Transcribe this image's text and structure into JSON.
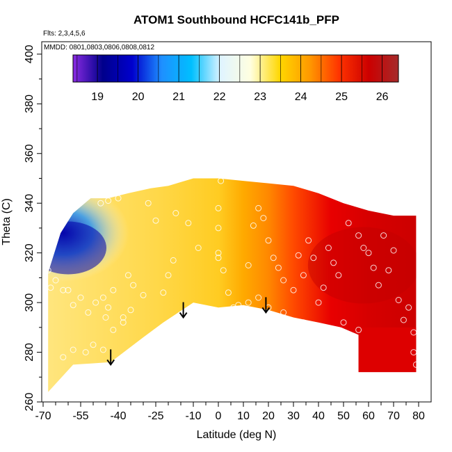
{
  "chart_data": {
    "type": "heatmap",
    "title": "ATOM1 Southbound HCFC141b_PFP",
    "flights_note": "Flts: 2,3,4,5,6",
    "dates_note": "MMDD: 0801,0803,0806,0808,0812",
    "xlabel": "Latitude (deg N)",
    "ylabel": "Theta (C)",
    "xlim": [
      -70,
      82
    ],
    "ylim": [
      260,
      405
    ],
    "x_ticks": [
      -70,
      -55,
      -40,
      -25,
      -10,
      0,
      10,
      20,
      30,
      40,
      50,
      60,
      70,
      80
    ],
    "y_ticks": [
      260,
      280,
      300,
      320,
      340,
      360,
      380,
      400
    ],
    "colorbar": {
      "min": 18.4,
      "max": 26.4,
      "ticks": [
        19,
        20,
        21,
        22,
        23,
        24,
        25,
        26
      ],
      "colors": [
        "#8a2be2",
        "#00008b",
        "#0000cd",
        "#1e90ff",
        "#00bfff",
        "#e0f4ff",
        "#ffffe0",
        "#ffd700",
        "#ff9900",
        "#ff3300",
        "#cc0000",
        "#a52a2a"
      ]
    },
    "tropopause_arrows": [
      {
        "lat": -43,
        "theta": 275
      },
      {
        "lat": -14,
        "theta": 294
      },
      {
        "lat": 19,
        "theta": 296
      }
    ],
    "domain_top": [
      [
        -68,
        312
      ],
      [
        -63,
        328
      ],
      [
        -58,
        336
      ],
      [
        -51,
        342
      ],
      [
        -44,
        342
      ],
      [
        -36,
        344
      ],
      [
        -27,
        346
      ],
      [
        -20,
        347
      ],
      [
        -10,
        350
      ],
      [
        0,
        350
      ],
      [
        10,
        349
      ],
      [
        20,
        348
      ],
      [
        30,
        347
      ],
      [
        40,
        344
      ],
      [
        50,
        340
      ],
      [
        60,
        337
      ],
      [
        70,
        335
      ],
      [
        79,
        335
      ],
      [
        79,
        272
      ]
    ],
    "domain_bottom": [
      [
        -68,
        264
      ],
      [
        -58,
        275
      ],
      [
        -43,
        276
      ],
      [
        -30,
        286
      ],
      [
        -22,
        292
      ],
      [
        -10,
        300
      ],
      [
        0,
        298
      ],
      [
        10,
        299
      ],
      [
        20,
        297
      ],
      [
        30,
        294
      ],
      [
        40,
        292
      ],
      [
        49,
        290
      ],
      [
        56,
        287
      ],
      [
        56,
        272
      ]
    ],
    "sample_points": [
      [
        -68,
        313
      ],
      [
        -67,
        306
      ],
      [
        -65,
        309
      ],
      [
        -62,
        305
      ],
      [
        -60,
        305
      ],
      [
        -58,
        299
      ],
      [
        -55,
        302
      ],
      [
        -52,
        296
      ],
      [
        -49,
        300
      ],
      [
        -46,
        302
      ],
      [
        -45,
        294
      ],
      [
        -44,
        298
      ],
      [
        -42,
        305
      ],
      [
        -38,
        292
      ],
      [
        -36,
        311
      ],
      [
        -34,
        307
      ],
      [
        -30,
        303
      ],
      [
        -22,
        304
      ],
      [
        -20,
        311
      ],
      [
        -18,
        317
      ],
      [
        -47,
        340
      ],
      [
        -44,
        341
      ],
      [
        -40,
        342
      ],
      [
        -28,
        340
      ],
      [
        -25,
        333
      ],
      [
        -17,
        336
      ],
      [
        -12,
        332
      ],
      [
        -8,
        322
      ],
      [
        0,
        338
      ],
      [
        0,
        330
      ],
      [
        0,
        320
      ],
      [
        0,
        318
      ],
      [
        1,
        349
      ],
      [
        2,
        313
      ],
      [
        4,
        304
      ],
      [
        6,
        298
      ],
      [
        12,
        315
      ],
      [
        14,
        331
      ],
      [
        16,
        338
      ],
      [
        18,
        334
      ],
      [
        20,
        325
      ],
      [
        22,
        318
      ],
      [
        24,
        314
      ],
      [
        26,
        309
      ],
      [
        30,
        305
      ],
      [
        32,
        319
      ],
      [
        34,
        311
      ],
      [
        36,
        325
      ],
      [
        38,
        318
      ],
      [
        40,
        300
      ],
      [
        42,
        306
      ],
      [
        44,
        322
      ],
      [
        46,
        316
      ],
      [
        48,
        311
      ],
      [
        52,
        332
      ],
      [
        56,
        327
      ],
      [
        58,
        322
      ],
      [
        60,
        320
      ],
      [
        62,
        314
      ],
      [
        64,
        307
      ],
      [
        66,
        327
      ],
      [
        68,
        313
      ],
      [
        70,
        321
      ],
      [
        72,
        301
      ],
      [
        74,
        293
      ],
      [
        76,
        298
      ],
      [
        78,
        288
      ],
      [
        78,
        280
      ],
      [
        79,
        275
      ],
      [
        -62,
        278
      ],
      [
        -58,
        281
      ],
      [
        -53,
        280
      ],
      [
        -50,
        283
      ],
      [
        -46,
        281
      ],
      [
        -42,
        289
      ],
      [
        -38,
        294
      ],
      [
        -35,
        297
      ],
      [
        8,
        299
      ],
      [
        12,
        300
      ],
      [
        16,
        302
      ],
      [
        20,
        298
      ],
      [
        26,
        296
      ],
      [
        34,
        292
      ],
      [
        42,
        290
      ],
      [
        50,
        292
      ],
      [
        56,
        289
      ]
    ]
  }
}
